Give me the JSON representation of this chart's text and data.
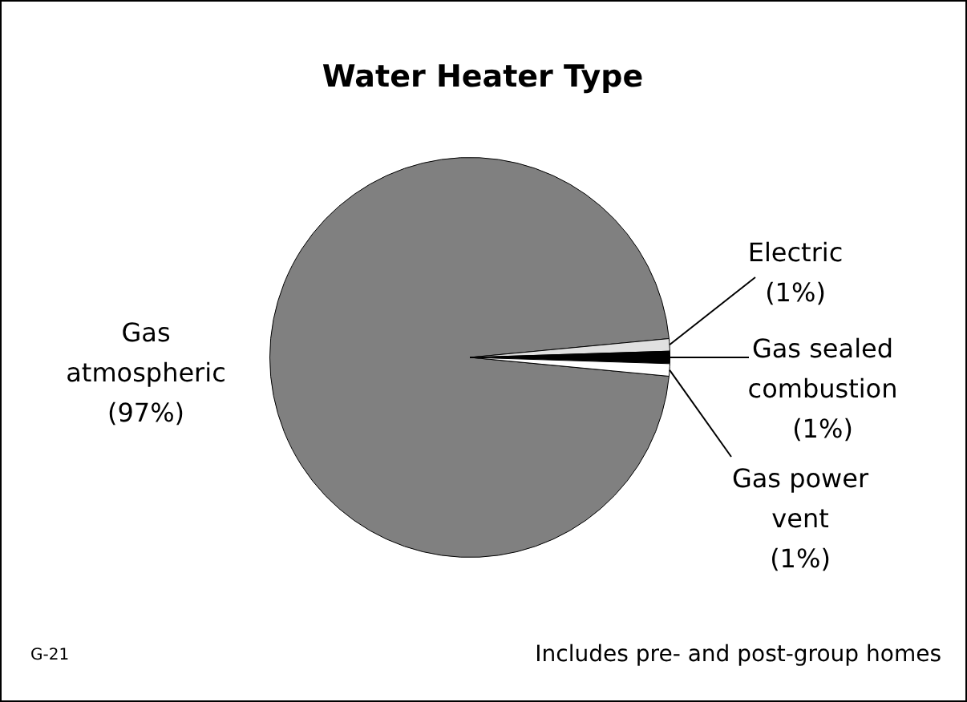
{
  "chart_data": {
    "type": "pie",
    "title": "Water Heater Type",
    "categories": [
      "Gas atmospheric",
      "Electric",
      "Gas sealed combustion",
      "Gas power vent"
    ],
    "values": [
      97,
      1,
      1,
      1
    ],
    "colors": [
      "#808080",
      "#e0e0e0",
      "#000000",
      "#ffffff"
    ],
    "value_labels": [
      "(97%)",
      "(1%)",
      "(1%)",
      "(1%)"
    ],
    "legend": false,
    "annotations": [
      "G-21",
      "Includes pre- and post-group homes"
    ]
  }
}
